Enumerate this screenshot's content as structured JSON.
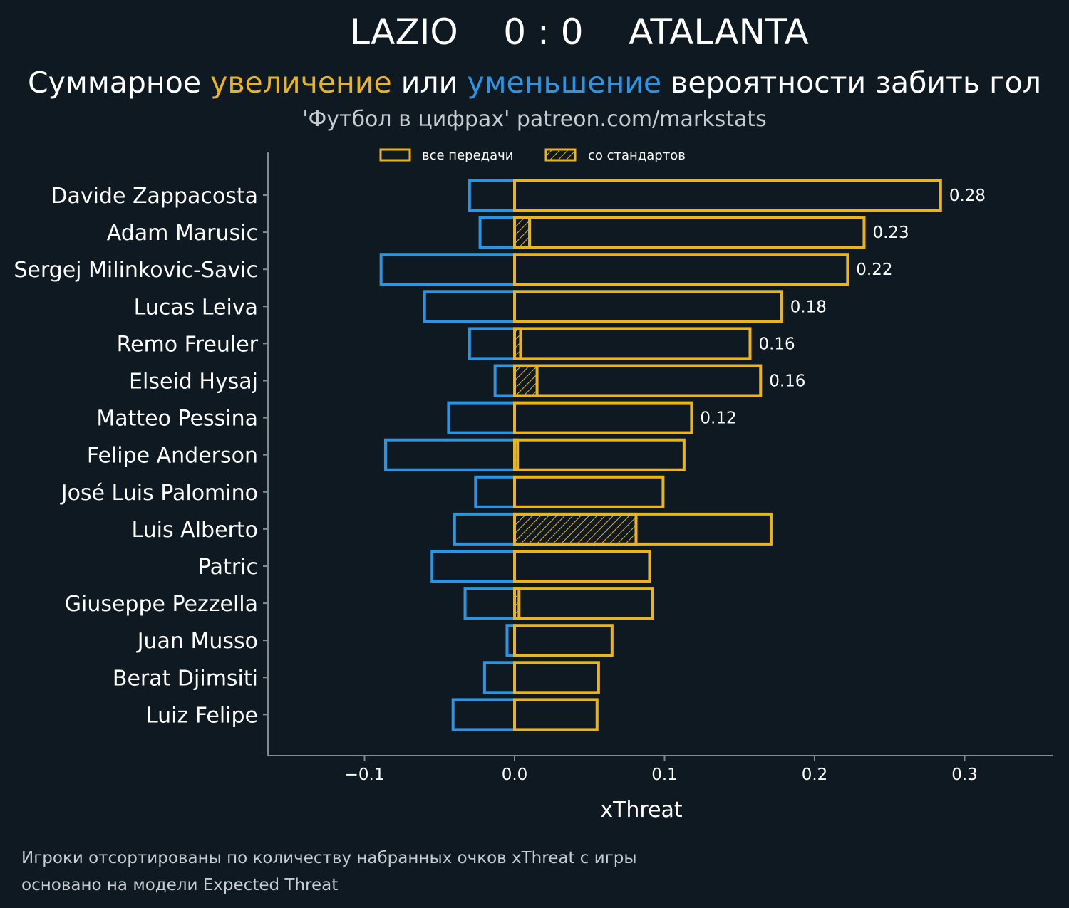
{
  "header": {
    "title": "LAZIO    0 : 0    ATALANTA",
    "subtitle_part1": "Суммарное ",
    "subtitle_increase": "увеличение",
    "subtitle_part2": " или ",
    "subtitle_decrease": "уменьшение",
    "subtitle_part3": " вероятности забить гол",
    "source": "'Футбол в цифрах' patreon.com/markstats"
  },
  "footer": {
    "line1": "Игроки отсортированы по количеству набранных очков xThreat с игры",
    "line2": "основано на модели Expected Threat"
  },
  "colors": {
    "background": "#0f1921",
    "positive": "#e8b422",
    "negative": "#2b95e3",
    "axis": "#7f8a91"
  },
  "chart_data": {
    "type": "bar",
    "orientation": "horizontal",
    "xlabel": "xThreat",
    "xlim": [
      -0.165,
      0.36
    ],
    "xticks": [
      -0.1,
      0.0,
      0.1,
      0.2,
      0.3
    ],
    "xtick_labels": [
      "−0.1",
      "0.0",
      "0.1",
      "0.2",
      "0.3"
    ],
    "legend": [
      "все передачи",
      "со стандартов"
    ],
    "legend_position": "top-center",
    "players": [
      "Davide Zappacosta",
      "Adam Marusic",
      "Sergej Milinkovic-Savic",
      "Lucas Leiva",
      "Remo Freuler",
      "Elseid Hysaj",
      "Matteo Pessina",
      "Felipe Anderson",
      "José Luis Palomino",
      "Luis Alberto",
      "Patric",
      "Giuseppe Pezzella",
      "Juan Musso",
      "Berat Djimsiti",
      "Luiz Felipe"
    ],
    "series": [
      {
        "name": "все передачи (увеличение)",
        "values": [
          0.284,
          0.233,
          0.222,
          0.178,
          0.157,
          0.164,
          0.118,
          0.113,
          0.099,
          0.171,
          0.09,
          0.092,
          0.065,
          0.056,
          0.055
        ]
      },
      {
        "name": "со стандартов",
        "values": [
          0.0,
          0.01,
          0.0,
          0.0,
          0.004,
          0.015,
          0.0,
          0.002,
          0.0,
          0.081,
          0.0,
          0.003,
          0.0,
          0.0,
          0.0
        ]
      },
      {
        "name": "уменьшение",
        "values": [
          -0.03,
          -0.023,
          -0.089,
          -0.06,
          -0.03,
          -0.013,
          -0.044,
          -0.086,
          -0.026,
          -0.04,
          -0.055,
          -0.033,
          -0.005,
          -0.02,
          -0.041
        ]
      }
    ],
    "value_labels": [
      "0.28",
      "0.23",
      "0.22",
      "0.18",
      "0.16",
      "0.16",
      "0.12",
      "",
      "",
      "",
      "",
      "",
      "",
      "",
      ""
    ]
  }
}
